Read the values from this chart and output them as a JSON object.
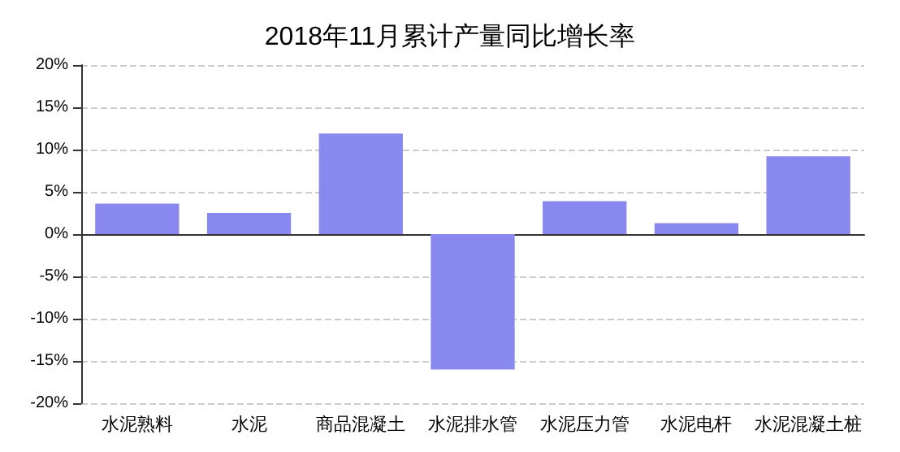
{
  "chart_data": {
    "type": "bar",
    "title": "2018年11月累计产量同比增长率",
    "categories": [
      "水泥熟料",
      "水泥",
      "商品混凝土",
      "水泥排水管",
      "水泥压力管",
      "水泥电杆",
      "水泥混凝土桩"
    ],
    "values": [
      3.6,
      2.5,
      11.9,
      -16.0,
      3.9,
      1.3,
      9.2
    ],
    "color": "#8888ee",
    "ylim": [
      -20,
      20
    ],
    "yticks": [
      {
        "value": -20,
        "label": "-20%"
      },
      {
        "value": -15,
        "label": "-15%"
      },
      {
        "value": -10,
        "label": "-10%"
      },
      {
        "value": -5,
        "label": "-5%"
      },
      {
        "value": 0,
        "label": "0%"
      },
      {
        "value": 5,
        "label": "5%"
      },
      {
        "value": 10,
        "label": "10%"
      },
      {
        "value": 15,
        "label": "15%"
      },
      {
        "value": 20,
        "label": "20%"
      }
    ],
    "grid": "y"
  }
}
